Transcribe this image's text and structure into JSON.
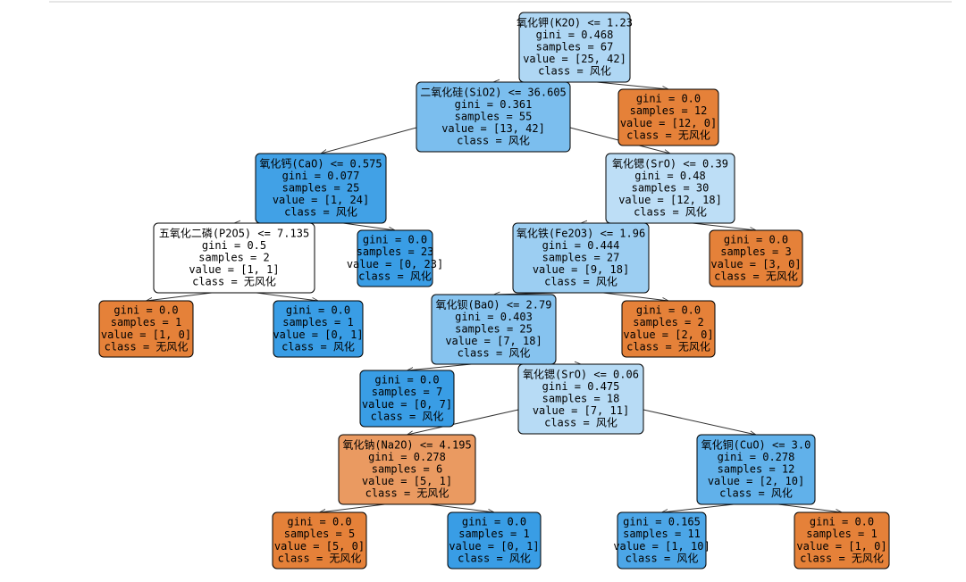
{
  "nodes": [
    {
      "color": "#afd7f4",
      "lines": [
        "氧化钾(K2O) <= 1.23",
        "gini = 0.468",
        "samples = 67",
        "value = [25, 42]",
        "class = 风化"
      ]
    },
    {
      "color": "#7bbeee",
      "lines": [
        "二氧化硅(SiO2) <= 36.605",
        "gini = 0.361",
        "samples = 55",
        "value = [13, 42]",
        "class = 风化"
      ]
    },
    {
      "color": "#e58139",
      "lines": [
        "gini = 0.0",
        "samples = 12",
        "value = [12, 0]",
        "class = 无风化"
      ]
    },
    {
      "color": "#41a1e6",
      "lines": [
        "氧化钙(CaO) <= 0.575",
        "gini = 0.077",
        "samples = 25",
        "value = [1, 24]",
        "class = 风化"
      ]
    },
    {
      "color": "#bddef6",
      "lines": [
        "氧化锶(SrO) <= 0.39",
        "gini = 0.48",
        "samples = 30",
        "value = [12, 18]",
        "class = 风化"
      ]
    },
    {
      "color": "#ffffff",
      "lines": [
        "五氧化二磷(P2O5) <= 7.135",
        "gini = 0.5",
        "samples = 2",
        "value = [1, 1]",
        "class = 无风化"
      ]
    },
    {
      "color": "#399de5",
      "lines": [
        "gini = 0.0",
        "samples = 23",
        "value = [0, 23]",
        "class = 风化"
      ]
    },
    {
      "color": "#9ccef2",
      "lines": [
        "氧化铁(Fe2O3) <= 1.96",
        "gini = 0.444",
        "samples = 27",
        "value = [9, 18]",
        "class = 风化"
      ]
    },
    {
      "color": "#e58139",
      "lines": [
        "gini = 0.0",
        "samples = 3",
        "value = [3, 0]",
        "class = 无风化"
      ]
    },
    {
      "color": "#e58139",
      "lines": [
        "gini = 0.0",
        "samples = 1",
        "value = [1, 0]",
        "class = 无风化"
      ]
    },
    {
      "color": "#399de5",
      "lines": [
        "gini = 0.0",
        "samples = 1",
        "value = [0, 1]",
        "class = 风化"
      ]
    },
    {
      "color": "#86c3ef",
      "lines": [
        "氧化钡(BaO) <= 2.79",
        "gini = 0.403",
        "samples = 25",
        "value = [7, 18]",
        "class = 风化"
      ]
    },
    {
      "color": "#e58139",
      "lines": [
        "gini = 0.0",
        "samples = 2",
        "value = [2, 0]",
        "class = 无风化"
      ]
    },
    {
      "color": "#399de5",
      "lines": [
        "gini = 0.0",
        "samples = 7",
        "value = [0, 7]",
        "class = 风化"
      ]
    },
    {
      "color": "#b7dbf5",
      "lines": [
        "氧化锶(SrO) <= 0.06",
        "gini = 0.475",
        "samples = 18",
        "value = [7, 11]",
        "class = 风化"
      ]
    },
    {
      "color": "#ea9a61",
      "lines": [
        "氧化钠(Na2O) <= 4.195",
        "gini = 0.278",
        "samples = 6",
        "value = [5, 1]",
        "class = 无风化"
      ]
    },
    {
      "color": "#61b1ea",
      "lines": [
        "氧化铜(CuO) <= 3.0",
        "gini = 0.278",
        "samples = 12",
        "value = [2, 10]",
        "class = 风化"
      ]
    },
    {
      "color": "#e58139",
      "lines": [
        "gini = 0.0",
        "samples = 5",
        "value = [5, 0]",
        "class = 无风化"
      ]
    },
    {
      "color": "#399de5",
      "lines": [
        "gini = 0.0",
        "samples = 1",
        "value = [0, 1]",
        "class = 风化"
      ]
    },
    {
      "color": "#4ca6e7",
      "lines": [
        "gini = 0.165",
        "samples = 11",
        "value = [1, 10]",
        "class = 风化"
      ]
    },
    {
      "color": "#e58139",
      "lines": [
        "gini = 0.0",
        "samples = 1",
        "value = [1, 0]",
        "class = 无风化"
      ]
    }
  ]
}
